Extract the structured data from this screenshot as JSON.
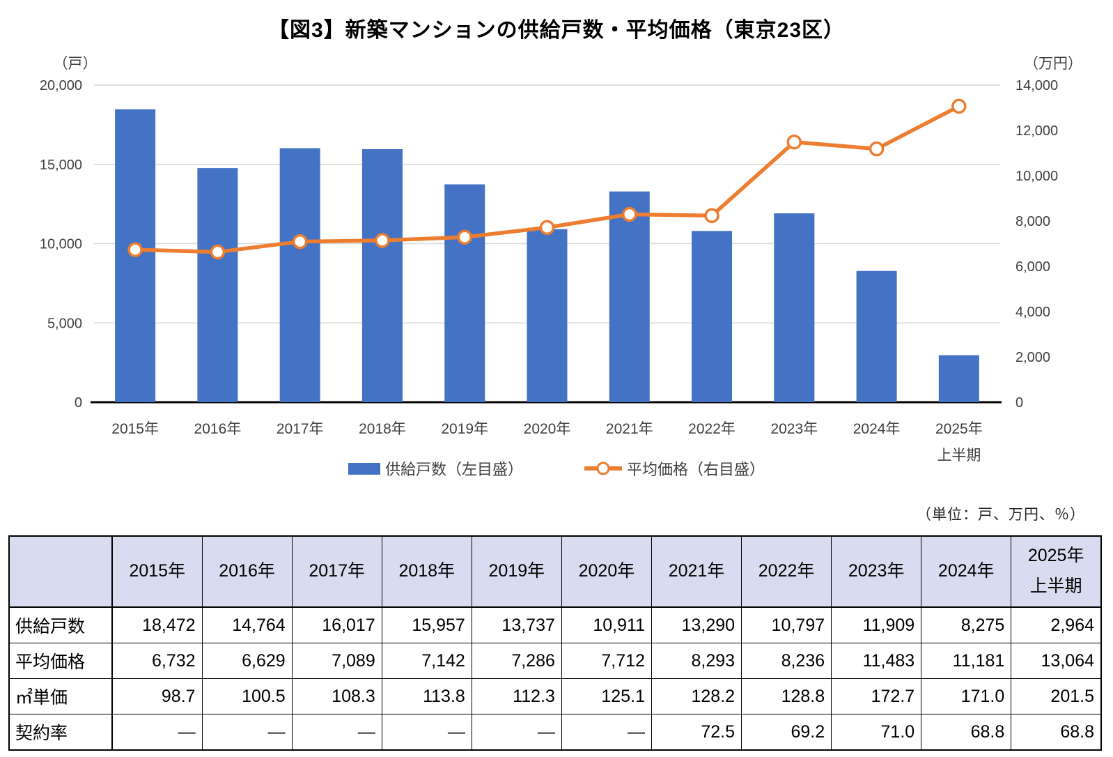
{
  "title": "【図3】新築マンションの供給戸数・平均価格（東京23区）",
  "unit_note": "（単位：戸、万円、％）",
  "colors": {
    "bar": "#4472C4",
    "line": "#ED7D31",
    "marker_fill": "#FFFFFF",
    "gridline": "#D9D9D9",
    "axis": "#000000",
    "tick_text": "#404040",
    "table_header_bg": "#D9DCF0"
  },
  "chart_data": {
    "type": "bar+line",
    "categories": [
      "2015年",
      "2016年",
      "2017年",
      "2018年",
      "2019年",
      "2020年",
      "2021年",
      "2022年",
      "2023年",
      "2024年",
      "2025年\n上半期"
    ],
    "series": [
      {
        "name": "供給戸数（左目盛）",
        "type": "bar",
        "axis": "left",
        "values": [
          18472,
          14764,
          16017,
          15957,
          13737,
          10911,
          13290,
          10797,
          11909,
          8275,
          2964
        ]
      },
      {
        "name": "平均価格（右目盛）",
        "type": "line",
        "axis": "right",
        "values": [
          6732,
          6629,
          7089,
          7142,
          7286,
          7712,
          8293,
          8236,
          11483,
          11181,
          13064
        ]
      }
    ],
    "left_axis": {
      "unit": "（戸）",
      "ticks": [
        0,
        5000,
        10000,
        15000,
        20000
      ],
      "min": 0,
      "max": 20000
    },
    "right_axis": {
      "unit": "（万円）",
      "ticks": [
        0,
        2000,
        4000,
        6000,
        8000,
        10000,
        12000,
        14000
      ],
      "min": 0,
      "max": 14000
    },
    "grid": true,
    "legend_position": "bottom"
  },
  "table": {
    "corner": "",
    "columns": [
      "2015年",
      "2016年",
      "2017年",
      "2018年",
      "2019年",
      "2020年",
      "2021年",
      "2022年",
      "2023年",
      "2024年",
      "2025年\n上半期"
    ],
    "rows": [
      {
        "label": "供給戸数",
        "values": [
          "18,472",
          "14,764",
          "16,017",
          "15,957",
          "13,737",
          "10,911",
          "13,290",
          "10,797",
          "11,909",
          "8,275",
          "2,964"
        ]
      },
      {
        "label": "平均価格",
        "values": [
          "6,732",
          "6,629",
          "7,089",
          "7,142",
          "7,286",
          "7,712",
          "8,293",
          "8,236",
          "11,483",
          "11,181",
          "13,064"
        ]
      },
      {
        "label": "㎡単価",
        "values": [
          "98.7",
          "100.5",
          "108.3",
          "113.8",
          "112.3",
          "125.1",
          "128.2",
          "128.8",
          "172.7",
          "171.0",
          "201.5"
        ]
      },
      {
        "label": "契約率",
        "values": [
          "―",
          "―",
          "―",
          "―",
          "―",
          "―",
          "72.5",
          "69.2",
          "71.0",
          "68.8",
          "68.8"
        ]
      }
    ]
  }
}
